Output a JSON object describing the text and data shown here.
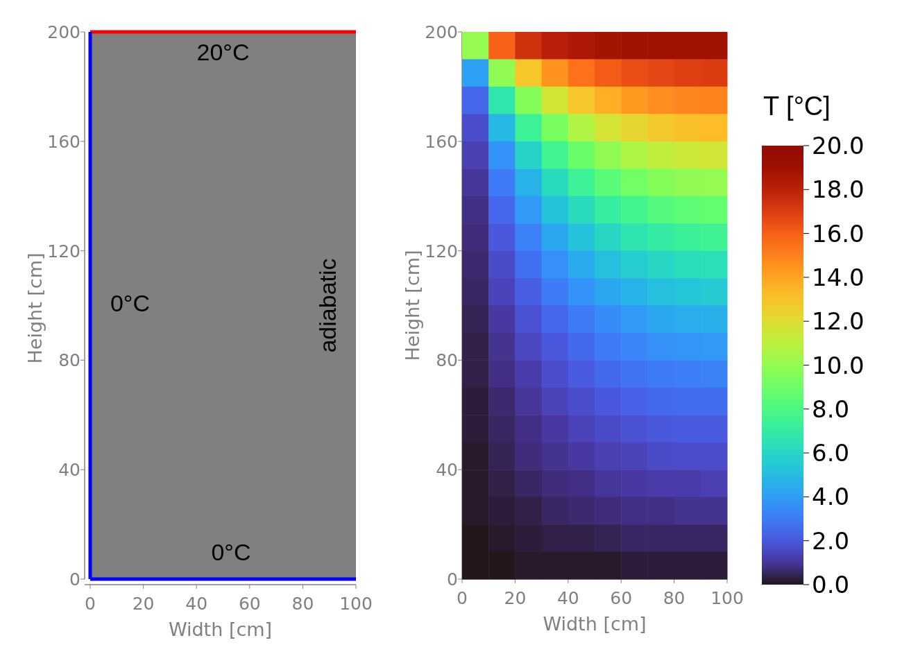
{
  "chart_data": [
    {
      "type": "line",
      "xlabel": "Width [cm]",
      "ylabel": "Height [cm]",
      "xlim": [
        0,
        100
      ],
      "ylim": [
        0,
        200
      ],
      "xticks": [
        0,
        20,
        40,
        60,
        80,
        100
      ],
      "yticks": [
        0,
        40,
        80,
        120,
        160,
        200
      ],
      "bands": [
        {
          "axis": "x",
          "from": 0,
          "to": 100,
          "color": "#808080"
        }
      ],
      "ref_lines": [
        {
          "axis": "y",
          "value": 200,
          "color": "#ff0000"
        },
        {
          "axis": "x",
          "value": 0,
          "color": "#0000ff"
        },
        {
          "axis": "y",
          "value": 0,
          "color": "#0000ff"
        }
      ],
      "annotations": [
        "20°C",
        "0°C",
        "0°C",
        "adiabatic"
      ]
    },
    {
      "type": "heatmap",
      "xlabel": "Width [cm]",
      "ylabel": "Height [cm]",
      "clabel": "T [°C]",
      "xlim": [
        0,
        100
      ],
      "ylim": [
        0,
        200
      ],
      "xticks": [
        0,
        20,
        40,
        60,
        80,
        100
      ],
      "yticks": [
        0,
        40,
        80,
        120,
        160,
        200
      ],
      "x": [
        5,
        15,
        25,
        35,
        45,
        55,
        65,
        75,
        85,
        95
      ],
      "y": [
        195,
        185,
        175,
        165,
        155,
        145,
        135,
        125,
        115,
        105,
        95,
        85,
        75,
        65,
        55,
        45,
        35,
        25,
        15,
        5
      ],
      "cells": [
        [
          10.0,
          15.9,
          17.4,
          18.1,
          18.4,
          18.7,
          18.8,
          18.9,
          18.9,
          18.9
        ],
        [
          4.1,
          9.9,
          12.9,
          14.5,
          15.5,
          16.1,
          16.5,
          16.7,
          16.9,
          17.0
        ],
        [
          2.4,
          6.7,
          9.6,
          11.6,
          12.9,
          13.7,
          14.3,
          14.7,
          14.9,
          15.0
        ],
        [
          1.7,
          4.9,
          7.4,
          9.3,
          10.7,
          11.7,
          12.3,
          12.8,
          13.1,
          13.2
        ],
        [
          1.3,
          3.7,
          5.9,
          7.6,
          8.9,
          9.9,
          10.6,
          11.1,
          11.4,
          11.6
        ],
        [
          1.0,
          3.0,
          4.7,
          6.2,
          7.4,
          8.4,
          9.1,
          9.6,
          9.9,
          10.0
        ],
        [
          0.8,
          2.4,
          3.9,
          5.2,
          6.2,
          7.1,
          7.7,
          8.2,
          8.5,
          8.7
        ],
        [
          0.7,
          2.0,
          3.2,
          4.3,
          5.2,
          6.0,
          6.6,
          7.0,
          7.3,
          7.5
        ],
        [
          0.6,
          1.6,
          2.7,
          3.6,
          4.4,
          5.1,
          5.6,
          6.0,
          6.3,
          6.4
        ],
        [
          0.5,
          1.4,
          2.2,
          3.0,
          3.7,
          4.3,
          4.7,
          5.1,
          5.3,
          5.5
        ],
        [
          0.4,
          1.1,
          1.8,
          2.4,
          3.0,
          3.5,
          3.9,
          4.3,
          4.5,
          4.6
        ],
        [
          0.3,
          0.9,
          1.5,
          2.0,
          2.5,
          3.0,
          3.3,
          3.6,
          3.8,
          3.9
        ],
        [
          0.3,
          0.8,
          1.2,
          1.7,
          2.1,
          2.5,
          2.8,
          3.0,
          3.1,
          3.2
        ],
        [
          0.2,
          0.6,
          1.0,
          1.4,
          1.7,
          2.0,
          2.3,
          2.5,
          2.6,
          2.6
        ],
        [
          0.2,
          0.5,
          0.8,
          1.1,
          1.4,
          1.6,
          1.8,
          2.0,
          2.1,
          2.1
        ],
        [
          0.1,
          0.4,
          0.7,
          0.9,
          1.1,
          1.3,
          1.4,
          1.6,
          1.7,
          1.7
        ],
        [
          0.1,
          0.3,
          0.5,
          0.7,
          0.8,
          1.0,
          1.1,
          1.2,
          1.2,
          1.3
        ],
        [
          0.1,
          0.2,
          0.3,
          0.5,
          0.6,
          0.7,
          0.8,
          0.8,
          0.9,
          0.9
        ],
        [
          0.0,
          0.1,
          0.2,
          0.3,
          0.3,
          0.4,
          0.5,
          0.5,
          0.5,
          0.5
        ],
        [
          0.0,
          0.0,
          0.1,
          0.1,
          0.1,
          0.1,
          0.2,
          0.2,
          0.2,
          0.2
        ]
      ],
      "clim": [
        0,
        20
      ],
      "cticks": [
        {
          "value": 0,
          "label": "0.0"
        },
        {
          "value": 2,
          "label": "2.0"
        },
        {
          "value": 4,
          "label": "4.0"
        },
        {
          "value": 6,
          "label": "6.0"
        },
        {
          "value": 8,
          "label": "8.0"
        },
        {
          "value": 10,
          "label": "10.0"
        },
        {
          "value": 12,
          "label": "12.0"
        },
        {
          "value": 14,
          "label": "14.0"
        },
        {
          "value": 16,
          "label": "16.0"
        },
        {
          "value": 18,
          "label": "18.0"
        },
        {
          "value": 20,
          "label": "20.0"
        }
      ]
    }
  ]
}
